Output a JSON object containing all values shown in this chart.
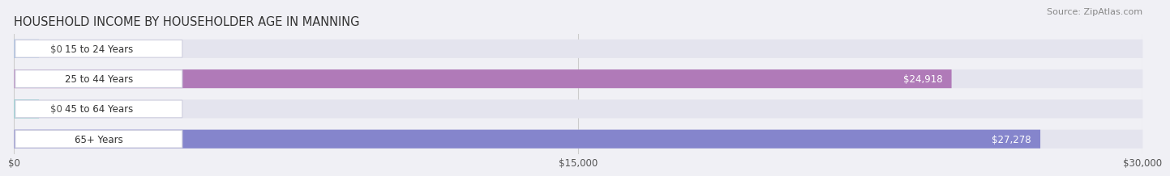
{
  "title": "HOUSEHOLD INCOME BY HOUSEHOLDER AGE IN MANNING",
  "source": "Source: ZipAtlas.com",
  "categories": [
    "15 to 24 Years",
    "25 to 44 Years",
    "45 to 64 Years",
    "65+ Years"
  ],
  "values": [
    0,
    24918,
    0,
    27278
  ],
  "bar_colors": [
    "#9ab8df",
    "#b07ab8",
    "#7ececa",
    "#8585cc"
  ],
  "label_colors": [
    "#555555",
    "#ffffff",
    "#555555",
    "#ffffff"
  ],
  "xlim": [
    0,
    30000
  ],
  "xticks": [
    0,
    15000,
    30000
  ],
  "xtick_labels": [
    "$0",
    "$15,000",
    "$30,000"
  ],
  "background_color": "#f0f0f5"
}
